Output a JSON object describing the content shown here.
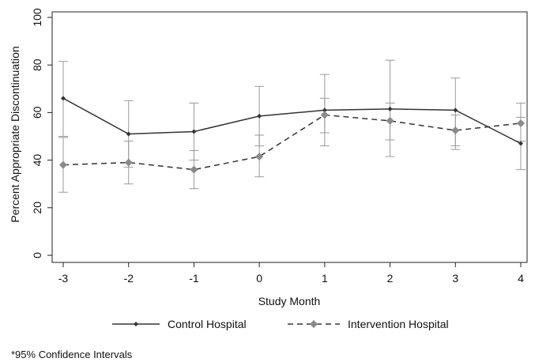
{
  "chart_data": {
    "type": "line",
    "xlabel": "Study Month",
    "ylabel": "Percent Appropriate Discontinuation",
    "x": [
      -3,
      -2,
      -1,
      0,
      1,
      2,
      3,
      4
    ],
    "x_tick_labels": [
      "-3",
      "-2",
      "-1",
      "0",
      "1",
      "2",
      "3",
      "4"
    ],
    "y_ticks": [
      0,
      20,
      40,
      60,
      80,
      100
    ],
    "y_tick_labels": [
      "0",
      "20",
      "40",
      "60",
      "80",
      "100"
    ],
    "xlim": [
      -3,
      4
    ],
    "ylim": [
      0,
      100
    ],
    "grid": false,
    "legend_position": "bottom",
    "series": [
      {
        "name": "Control Hospital",
        "line_style": "solid",
        "marker": "small diamond",
        "color": "#333333",
        "values": [
          66,
          51,
          52,
          58.5,
          61,
          61.5,
          61,
          47
        ],
        "ci_lower": [
          50,
          37,
          40,
          46,
          46,
          41.5,
          44.5,
          36
        ],
        "ci_upper": [
          81.5,
          65,
          64,
          71,
          76,
          82,
          74.5,
          64
        ]
      },
      {
        "name": "Intervention Hospital",
        "line_style": "dashed",
        "marker": "diamond",
        "color": "#888888",
        "values": [
          38,
          39,
          36,
          41.5,
          59,
          56.5,
          52.5,
          55.5
        ],
        "ci_lower": [
          26.5,
          30,
          28,
          33,
          51.5,
          48.5,
          46,
          48
        ],
        "ci_upper": [
          49.5,
          48,
          44,
          50.5,
          66,
          64,
          59,
          58
        ]
      }
    ],
    "footnote": "*95% Confidence Intervals"
  }
}
